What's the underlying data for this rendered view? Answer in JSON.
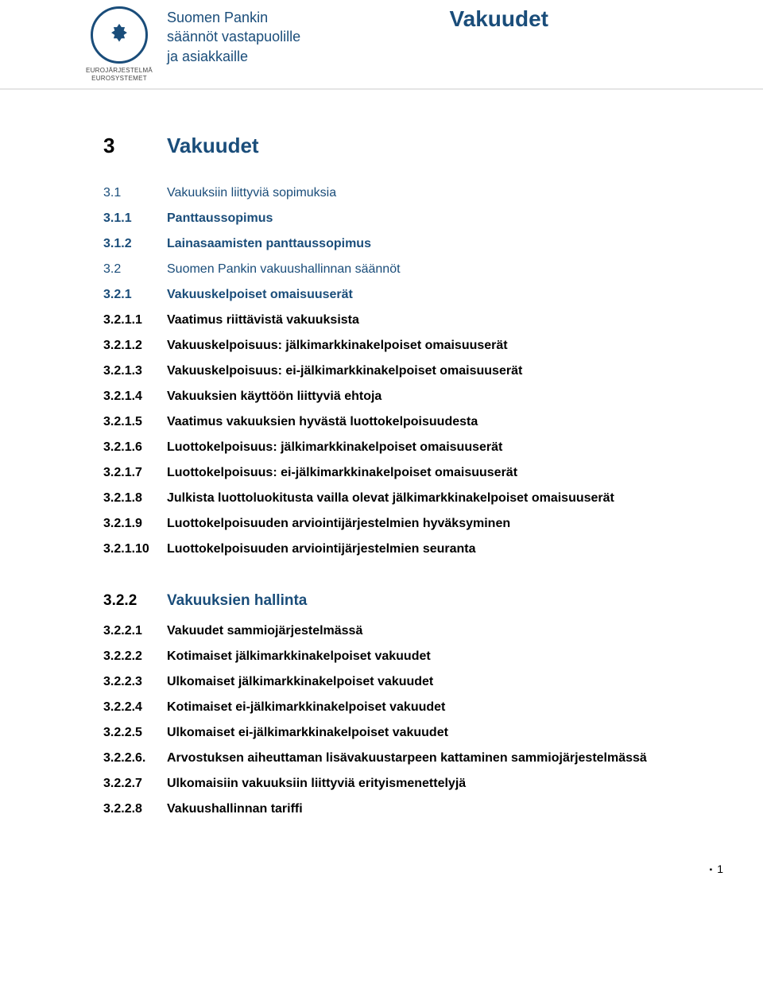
{
  "header": {
    "org_line1": "Suomen Pankin",
    "org_line2": "säännöt vastapuolille",
    "org_line3": "ja asiakkaille",
    "title_right": "Vakuudet",
    "logo_sub1": "EUROJÄRJESTELMÄ",
    "logo_sub2": "EUROSYSTEMET"
  },
  "chapter": {
    "num": "3",
    "title": "Vakuudet"
  },
  "toc1": [
    {
      "num": "3.1",
      "title": "Vakuuksiin liittyviä sopimuksia",
      "lvl": "lvl1"
    },
    {
      "num": "3.1.1",
      "title": "Panttaussopimus",
      "lvl": "lvl2"
    },
    {
      "num": "3.1.2",
      "title": "Lainasaamisten panttaussopimus",
      "lvl": "lvl2"
    },
    {
      "num": "3.2",
      "title": "Suomen Pankin vakuushallinnan säännöt",
      "lvl": "lvl1"
    },
    {
      "num": "3.2.1",
      "title": "Vakuuskelpoiset omaisuuserät",
      "lvl": "lvl2"
    },
    {
      "num": "3.2.1.1",
      "title": "Vaatimus riittävistä vakuuksista",
      "lvl": "lvl3"
    },
    {
      "num": "3.2.1.2",
      "title": "Vakuuskelpoisuus: jälkimarkkinakelpoiset omaisuuserät",
      "lvl": "lvl3"
    },
    {
      "num": "3.2.1.3",
      "title": "Vakuuskelpoisuus: ei-jälkimarkkinakelpoiset omaisuuserät",
      "lvl": "lvl3"
    },
    {
      "num": "3.2.1.4",
      "title": "Vakuuksien käyttöön liittyviä ehtoja",
      "lvl": "lvl3"
    },
    {
      "num": "3.2.1.5",
      "title": "Vaatimus vakuuksien hyvästä luottokelpoisuudesta",
      "lvl": "lvl3"
    },
    {
      "num": "3.2.1.6",
      "title": "Luottokelpoisuus: jälkimarkkinakelpoiset omaisuuserät",
      "lvl": "lvl3"
    },
    {
      "num": "3.2.1.7",
      "title": "Luottokelpoisuus: ei-jälkimarkkinakelpoiset omaisuuserät",
      "lvl": "lvl3"
    },
    {
      "num": "3.2.1.8",
      "title": "Julkista luottoluokitusta vailla olevat jälkimarkkinakelpoiset omaisuuserät",
      "lvl": "lvl3"
    },
    {
      "num": "3.2.1.9",
      "title": "Luottokelpoisuuden arviointijärjestelmien hyväksyminen",
      "lvl": "lvl3"
    },
    {
      "num": "3.2.1.10",
      "title": "Luottokelpoisuuden arviointijärjestelmien seuranta",
      "lvl": "lvl3"
    }
  ],
  "section2": {
    "num": "3.2.2",
    "title": "Vakuuksien hallinta"
  },
  "toc2": [
    {
      "num": "3.2.2.1",
      "title": "Vakuudet sammiojärjestelmässä",
      "lvl": "lvl3"
    },
    {
      "num": "3.2.2.2",
      "title": "Kotimaiset jälkimarkkinakelpoiset vakuudet",
      "lvl": "lvl3"
    },
    {
      "num": "3.2.2.3",
      "title": "Ulkomaiset jälkimarkkinakelpoiset vakuudet",
      "lvl": "lvl3"
    },
    {
      "num": "3.2.2.4",
      "title": "Kotimaiset ei-jälkimarkkinakelpoiset vakuudet",
      "lvl": "lvl3"
    },
    {
      "num": "3.2.2.5",
      "title": "Ulkomaiset ei-jälkimarkkinakelpoiset vakuudet",
      "lvl": "lvl3"
    },
    {
      "num": "3.2.2.6.",
      "title": "Arvostuksen aiheuttaman lisävakuustarpeen kattaminen sammiojärjestelmässä",
      "lvl": "lvl3"
    },
    {
      "num": "3.2.2.7",
      "title": "Ulkomaisiin vakuuksiin liittyviä erityismenettelyjä",
      "lvl": "lvl3"
    },
    {
      "num": "3.2.2.8",
      "title": "Vakuushallinnan tariffi",
      "lvl": "lvl3"
    }
  ],
  "page_number": "1"
}
